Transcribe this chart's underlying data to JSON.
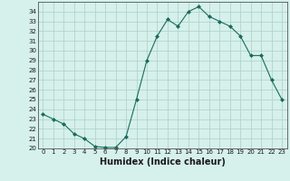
{
  "x": [
    0,
    1,
    2,
    3,
    4,
    5,
    6,
    7,
    8,
    9,
    10,
    11,
    12,
    13,
    14,
    15,
    16,
    17,
    18,
    19,
    20,
    21,
    22,
    23
  ],
  "y": [
    23.5,
    23.0,
    22.5,
    21.5,
    21.0,
    20.2,
    20.1,
    20.1,
    21.2,
    25.0,
    29.0,
    31.5,
    33.2,
    32.5,
    34.0,
    34.5,
    33.5,
    33.0,
    32.5,
    31.5,
    29.5,
    29.5,
    27.0,
    25.0
  ],
  "line_color": "#1a6b5c",
  "marker": "D",
  "marker_size": 2,
  "bg_color": "#d6f0ec",
  "grid_color": "#aacfc8",
  "xlabel": "Humidex (Indice chaleur)",
  "xlim": [
    -0.5,
    23.5
  ],
  "ylim": [
    20,
    35
  ],
  "yticks": [
    20,
    21,
    22,
    23,
    24,
    25,
    26,
    27,
    28,
    29,
    30,
    31,
    32,
    33,
    34
  ],
  "xticks": [
    0,
    1,
    2,
    3,
    4,
    5,
    6,
    7,
    8,
    9,
    10,
    11,
    12,
    13,
    14,
    15,
    16,
    17,
    18,
    19,
    20,
    21,
    22,
    23
  ],
  "tick_fontsize": 5,
  "xlabel_fontsize": 7,
  "label_color": "#1a1a1a",
  "spine_color": "#555555",
  "linewidth": 0.8
}
